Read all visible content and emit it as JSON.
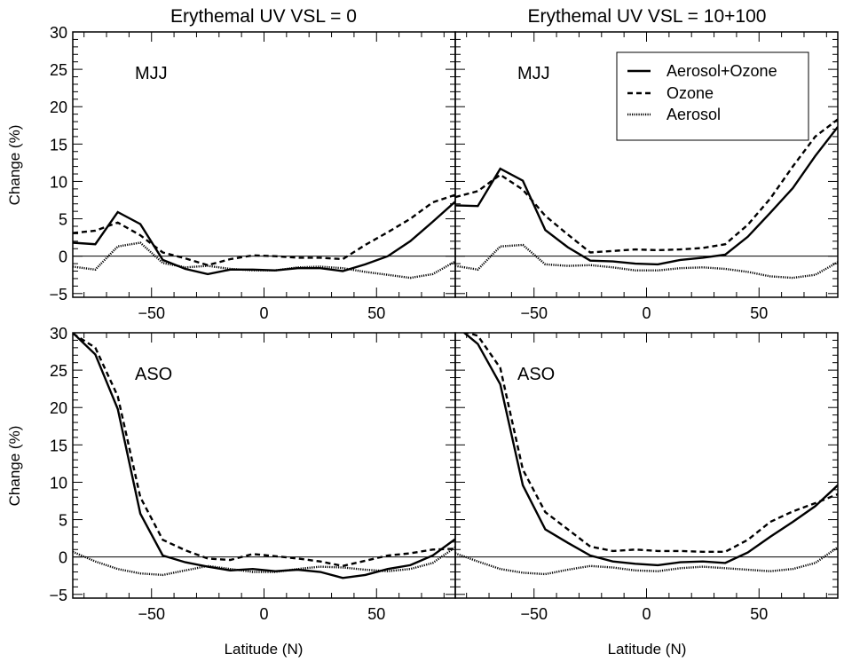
{
  "chart_data": {
    "type": "line",
    "layout": "2x2 panels",
    "columns": [
      "Erythemal UV VSL = 0",
      "Erythemal UV VSL = 10+100"
    ],
    "xlabel": "Latitude (N)",
    "ylabel": "Change (%)",
    "xlim": [
      -85,
      85
    ],
    "ylim": [
      -5.5,
      30
    ],
    "xticks": [
      -50,
      0,
      50
    ],
    "yticks": [
      -5,
      0,
      5,
      10,
      15,
      20,
      25,
      30
    ],
    "x": [
      -85,
      -75,
      -65,
      -55,
      -45,
      -35,
      -25,
      -15,
      -5,
      5,
      15,
      25,
      35,
      45,
      55,
      65,
      75,
      85
    ],
    "legend": {
      "placement": "top-right of upper-right panel",
      "entries": [
        "Aerosol+Ozone",
        "Ozone",
        "Aerosol"
      ]
    },
    "panels": [
      {
        "title": "Erythemal UV VSL = 0",
        "season": "MJJ",
        "series": [
          {
            "name": "Aerosol+Ozone",
            "style": "solid",
            "values": [
              1.8,
              1.6,
              5.9,
              4.3,
              -0.5,
              -1.7,
              -2.4,
              -1.8,
              -1.8,
              -1.9,
              -1.6,
              -1.6,
              -2.0,
              -1.1,
              0.0,
              2.0,
              4.6,
              7.3
            ]
          },
          {
            "name": "Ozone",
            "style": "dashed",
            "values": [
              3.1,
              3.4,
              4.5,
              2.8,
              0.5,
              -0.3,
              -1.2,
              -0.4,
              0.1,
              0.0,
              -0.2,
              -0.2,
              -0.4,
              1.5,
              3.2,
              5.0,
              7.2,
              8.2
            ]
          },
          {
            "name": "Aerosol",
            "style": "dotted",
            "values": [
              -1.4,
              -1.8,
              1.3,
              1.8,
              -0.9,
              -1.5,
              -1.3,
              -1.7,
              -1.9,
              -1.9,
              -1.5,
              -1.4,
              -1.6,
              -2.1,
              -2.5,
              -2.9,
              -2.4,
              -0.7
            ]
          }
        ]
      },
      {
        "title": "Erythemal UV VSL = 10+100",
        "season": "MJJ",
        "series": [
          {
            "name": "Aerosol+Ozone",
            "style": "solid",
            "values": [
              6.8,
              6.7,
              11.7,
              10.1,
              3.5,
              1.2,
              -0.6,
              -0.7,
              -1.0,
              -1.1,
              -0.5,
              -0.2,
              0.2,
              2.6,
              5.8,
              9.1,
              13.4,
              17.3
            ]
          },
          {
            "name": "Ozone",
            "style": "dashed",
            "values": [
              7.9,
              8.7,
              10.9,
              8.9,
              5.4,
              2.9,
              0.5,
              0.7,
              0.9,
              0.8,
              0.9,
              1.1,
              1.6,
              4.2,
              7.7,
              12.0,
              16.0,
              18.3
            ]
          },
          {
            "name": "Aerosol",
            "style": "dotted",
            "values": [
              -1.3,
              -1.8,
              1.3,
              1.5,
              -1.1,
              -1.3,
              -1.2,
              -1.5,
              -1.9,
              -1.9,
              -1.6,
              -1.5,
              -1.7,
              -2.1,
              -2.7,
              -2.9,
              -2.5,
              -0.8
            ]
          }
        ]
      },
      {
        "title": "Erythemal UV VSL = 0",
        "season": "ASO",
        "series": [
          {
            "name": "Aerosol+Ozone",
            "style": "solid",
            "values": [
              30.0,
              27.1,
              19.8,
              5.8,
              0.2,
              -0.7,
              -1.3,
              -1.8,
              -1.6,
              -1.9,
              -1.7,
              -2.0,
              -2.8,
              -2.4,
              -1.6,
              -1.1,
              0.2,
              2.4
            ]
          },
          {
            "name": "Ozone",
            "style": "dashed",
            "values": [
              29.9,
              28.0,
              21.5,
              8.0,
              2.3,
              0.9,
              -0.2,
              -0.4,
              0.4,
              0.1,
              -0.2,
              -0.6,
              -1.2,
              -0.5,
              0.2,
              0.5,
              1.0,
              1.1
            ]
          },
          {
            "name": "Aerosol",
            "style": "dotted",
            "values": [
              0.7,
              -0.6,
              -1.6,
              -2.2,
              -2.4,
              -1.8,
              -1.2,
              -1.6,
              -2.0,
              -2.0,
              -1.6,
              -1.3,
              -1.4,
              -1.7,
              -1.9,
              -1.6,
              -0.8,
              1.3
            ]
          }
        ]
      },
      {
        "title": "Erythemal UV VSL = 10+100",
        "season": "ASO",
        "series": [
          {
            "name": "Aerosol+Ozone",
            "style": "solid",
            "values": [
              31.0,
              28.5,
              23.1,
              9.6,
              3.7,
              1.9,
              0.2,
              -0.6,
              -0.9,
              -1.1,
              -0.7,
              -0.6,
              -0.8,
              0.6,
              2.7,
              4.7,
              6.8,
              9.6
            ]
          },
          {
            "name": "Ozone",
            "style": "dashed",
            "values": [
              30.5,
              29.6,
              25.3,
              11.7,
              6.0,
              3.7,
              1.4,
              0.8,
              1.0,
              0.8,
              0.8,
              0.7,
              0.7,
              2.3,
              4.7,
              6.1,
              7.2,
              8.4
            ]
          },
          {
            "name": "Aerosol",
            "style": "dotted",
            "values": [
              0.5,
              -0.6,
              -1.6,
              -2.1,
              -2.3,
              -1.7,
              -1.2,
              -1.4,
              -1.8,
              -1.9,
              -1.5,
              -1.3,
              -1.5,
              -1.7,
              -1.9,
              -1.6,
              -0.8,
              1.3
            ]
          }
        ]
      }
    ]
  }
}
